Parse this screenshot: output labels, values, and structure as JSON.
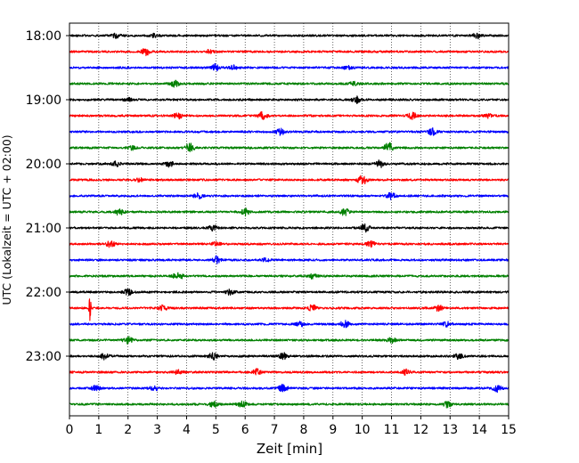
{
  "chart_data": {
    "type": "line",
    "title": "",
    "xlabel": "Zeit  [min]",
    "ylabel": "UTC (Lokalzeit = UTC + 02:00)",
    "xlim": [
      0,
      15
    ],
    "x_ticks": [
      0,
      1,
      2,
      3,
      4,
      5,
      6,
      7,
      8,
      9,
      10,
      11,
      12,
      13,
      14,
      15
    ],
    "y_ticks": [
      "18:00",
      "19:00",
      "20:00",
      "21:00",
      "22:00",
      "23:00"
    ],
    "row_interval_minutes": 15,
    "row_start": "18:00",
    "row_end": "23:45",
    "grid": "vertical dotted lines at each minute",
    "colors": [
      "#000000",
      "#ff0000",
      "#0000ff",
      "#008000"
    ],
    "series": [
      {
        "start": "18:00",
        "color": "#000000",
        "events": [
          {
            "t": 1.6,
            "amp": 0.35
          },
          {
            "t": 2.9,
            "amp": 0.3
          },
          {
            "t": 13.9,
            "amp": 0.55
          }
        ]
      },
      {
        "start": "18:15",
        "color": "#ff0000",
        "events": [
          {
            "t": 2.6,
            "amp": 0.6
          },
          {
            "t": 4.8,
            "amp": 0.3
          }
        ]
      },
      {
        "start": "18:30",
        "color": "#0000ff",
        "events": [
          {
            "t": 5.0,
            "amp": 0.6
          },
          {
            "t": 5.6,
            "amp": 0.35
          },
          {
            "t": 9.5,
            "amp": 0.3
          }
        ]
      },
      {
        "start": "18:45",
        "color": "#008000",
        "events": [
          {
            "t": 3.6,
            "amp": 0.65
          },
          {
            "t": 9.7,
            "amp": 0.3
          }
        ]
      },
      {
        "start": "19:00",
        "color": "#000000",
        "events": [
          {
            "t": 2.0,
            "amp": 0.3
          },
          {
            "t": 9.8,
            "amp": 0.6
          }
        ]
      },
      {
        "start": "19:15",
        "color": "#ff0000",
        "events": [
          {
            "t": 3.7,
            "amp": 0.55
          },
          {
            "t": 6.6,
            "amp": 0.7
          },
          {
            "t": 11.7,
            "amp": 0.6
          },
          {
            "t": 14.3,
            "amp": 0.35
          }
        ]
      },
      {
        "start": "19:30",
        "color": "#0000ff",
        "events": [
          {
            "t": 7.2,
            "amp": 0.6
          },
          {
            "t": 12.4,
            "amp": 0.6
          }
        ]
      },
      {
        "start": "19:45",
        "color": "#008000",
        "events": [
          {
            "t": 2.1,
            "amp": 0.4
          },
          {
            "t": 4.1,
            "amp": 0.8
          },
          {
            "t": 10.9,
            "amp": 0.9
          }
        ]
      },
      {
        "start": "20:00",
        "color": "#000000",
        "events": [
          {
            "t": 1.6,
            "amp": 0.4
          },
          {
            "t": 3.4,
            "amp": 0.5
          },
          {
            "t": 10.6,
            "amp": 0.6
          }
        ]
      },
      {
        "start": "20:15",
        "color": "#ff0000",
        "events": [
          {
            "t": 2.4,
            "amp": 0.35
          },
          {
            "t": 10.0,
            "amp": 0.9
          }
        ]
      },
      {
        "start": "20:30",
        "color": "#0000ff",
        "events": [
          {
            "t": 4.4,
            "amp": 0.45
          },
          {
            "t": 11.0,
            "amp": 0.6
          }
        ]
      },
      {
        "start": "20:45",
        "color": "#008000",
        "events": [
          {
            "t": 1.7,
            "amp": 0.6
          },
          {
            "t": 6.0,
            "amp": 0.6
          },
          {
            "t": 9.4,
            "amp": 0.6
          }
        ]
      },
      {
        "start": "21:00",
        "color": "#000000",
        "events": [
          {
            "t": 4.9,
            "amp": 0.45
          },
          {
            "t": 10.1,
            "amp": 0.7
          }
        ]
      },
      {
        "start": "21:15",
        "color": "#ff0000",
        "events": [
          {
            "t": 1.4,
            "amp": 0.5
          },
          {
            "t": 5.0,
            "amp": 0.35
          },
          {
            "t": 10.3,
            "amp": 0.55
          }
        ]
      },
      {
        "start": "21:30",
        "color": "#0000ff",
        "events": [
          {
            "t": 5.0,
            "amp": 0.65
          },
          {
            "t": 6.7,
            "amp": 0.3
          }
        ]
      },
      {
        "start": "21:45",
        "color": "#008000",
        "events": [
          {
            "t": 3.7,
            "amp": 0.85
          },
          {
            "t": 8.3,
            "amp": 0.4
          }
        ]
      },
      {
        "start": "22:00",
        "color": "#000000",
        "events": [
          {
            "t": 2.0,
            "amp": 0.5
          },
          {
            "t": 5.5,
            "amp": 0.5
          }
        ]
      },
      {
        "start": "22:15",
        "color": "#ff0000",
        "events": [
          {
            "t": 0.7,
            "amp": 3.2
          },
          {
            "t": 3.2,
            "amp": 0.5
          },
          {
            "t": 8.3,
            "amp": 0.55
          },
          {
            "t": 12.6,
            "amp": 0.6
          }
        ]
      },
      {
        "start": "22:30",
        "color": "#0000ff",
        "events": [
          {
            "t": 7.9,
            "amp": 0.4
          },
          {
            "t": 9.4,
            "amp": 0.6
          },
          {
            "t": 12.9,
            "amp": 0.45
          }
        ]
      },
      {
        "start": "22:45",
        "color": "#008000",
        "events": [
          {
            "t": 2.0,
            "amp": 0.7
          },
          {
            "t": 11.0,
            "amp": 0.45
          }
        ]
      },
      {
        "start": "23:00",
        "color": "#000000",
        "events": [
          {
            "t": 1.2,
            "amp": 0.55
          },
          {
            "t": 4.9,
            "amp": 0.6
          },
          {
            "t": 7.3,
            "amp": 0.55
          },
          {
            "t": 13.3,
            "amp": 0.5
          }
        ]
      },
      {
        "start": "23:15",
        "color": "#ff0000",
        "events": [
          {
            "t": 3.7,
            "amp": 0.35
          },
          {
            "t": 6.4,
            "amp": 0.5
          },
          {
            "t": 11.5,
            "amp": 0.45
          }
        ]
      },
      {
        "start": "23:30",
        "color": "#0000ff",
        "events": [
          {
            "t": 0.9,
            "amp": 0.45
          },
          {
            "t": 2.9,
            "amp": 0.4
          },
          {
            "t": 7.3,
            "amp": 0.65
          },
          {
            "t": 14.6,
            "amp": 0.6
          }
        ]
      },
      {
        "start": "23:45",
        "color": "#008000",
        "events": [
          {
            "t": 4.9,
            "amp": 0.55
          },
          {
            "t": 5.9,
            "amp": 0.5
          },
          {
            "t": 12.9,
            "amp": 0.5
          }
        ]
      }
    ]
  }
}
